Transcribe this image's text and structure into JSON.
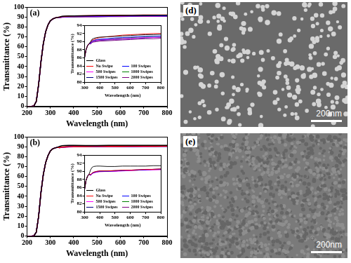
{
  "chart_data": [
    {
      "panel": "(a)",
      "type": "line",
      "x_label": "Wavelength (nm)",
      "y_label": "Transmittance (%)",
      "grid": false,
      "x": [
        200,
        220,
        230,
        240,
        250,
        260,
        270,
        280,
        290,
        300,
        310,
        320,
        330,
        340,
        350,
        360,
        380,
        400,
        450,
        500,
        550,
        600,
        650,
        700,
        750,
        800
      ],
      "xlim": [
        200,
        800
      ],
      "xticks": [
        200,
        300,
        400,
        500,
        600,
        700,
        800
      ],
      "ylim": [
        0,
        100
      ],
      "yticks": [
        0,
        10,
        20,
        30,
        40,
        50,
        60,
        70,
        80,
        90,
        100
      ],
      "series": [
        {
          "name": "Glass",
          "color": "#000000",
          "values": [
            0,
            0,
            0.5,
            5,
            22,
            45,
            63,
            75,
            82,
            86,
            88,
            89,
            89.5,
            90.0,
            90.6,
            90.8,
            91.0,
            91.1,
            91.2,
            91.3,
            91.4,
            91.5,
            91.6,
            91.7,
            91.7,
            91.8
          ]
        },
        {
          "name": "No Swipe",
          "color": "#ff0000",
          "values": [
            0,
            0,
            0.5,
            5,
            22,
            45,
            63,
            75,
            82,
            86,
            88,
            89,
            89.5,
            89.9,
            90.4,
            90.5,
            90.8,
            91.0,
            91.2,
            91.4,
            91.6,
            91.7,
            91.8,
            91.9,
            92.0,
            92.0
          ]
        },
        {
          "name": "100 Swipes",
          "color": "#0000ff",
          "values": [
            0,
            0,
            0.5,
            5,
            22,
            45,
            63,
            75,
            82,
            86,
            88,
            89,
            89.5,
            89.7,
            90.2,
            90.3,
            90.5,
            90.6,
            90.7,
            90.9,
            91.0,
            91.1,
            91.2,
            91.3,
            91.3,
            91.4
          ]
        },
        {
          "name": "500 Swipes",
          "color": "#ff00ff",
          "values": [
            0,
            0,
            0.5,
            5,
            22,
            45,
            63,
            75,
            82,
            86,
            88,
            89,
            89.5,
            89.6,
            90.0,
            90.1,
            90.3,
            90.4,
            90.5,
            90.6,
            90.7,
            90.8,
            90.9,
            91.0,
            91.0,
            91.1
          ]
        },
        {
          "name": "1000 Swipes",
          "color": "#008000",
          "values": [
            0,
            0,
            0.5,
            5,
            22,
            45,
            63,
            75,
            82,
            86,
            88,
            89,
            89.5,
            89.7,
            90.1,
            90.2,
            90.4,
            90.5,
            90.6,
            90.8,
            90.9,
            91.0,
            91.1,
            91.2,
            91.3,
            91.3
          ]
        },
        {
          "name": "1500 Swipes",
          "color": "#000080",
          "values": [
            0,
            0,
            0.5,
            5,
            22,
            45,
            63,
            75,
            82,
            86,
            88,
            89,
            89.5,
            89.5,
            89.9,
            90.0,
            90.2,
            90.3,
            90.4,
            90.5,
            90.6,
            90.7,
            90.8,
            90.9,
            91.0,
            91.0
          ]
        },
        {
          "name": "2000 Swipes",
          "color": "#800080",
          "values": [
            0,
            0,
            0.5,
            5,
            22,
            45,
            63,
            75,
            82,
            86,
            88,
            89,
            89.5,
            89.4,
            89.8,
            89.9,
            90.0,
            90.1,
            90.2,
            90.3,
            90.4,
            90.5,
            90.6,
            90.7,
            90.7,
            90.8
          ]
        }
      ],
      "inset": {
        "x_label": "Wavelength (nm)",
        "y_label": "Transmittance (%)",
        "legend": "lower left",
        "xlim": [
          300,
          800
        ],
        "xticks": [
          300,
          400,
          500,
          600,
          700,
          800
        ],
        "ylim": [
          80,
          94
        ],
        "yticks": [
          80,
          82,
          84,
          86,
          88,
          90,
          92,
          94
        ]
      }
    },
    {
      "panel": "(b)",
      "type": "line",
      "x_label": "Wavelength (nm)",
      "y_label": "Transmittance (%)",
      "grid": false,
      "x": [
        200,
        220,
        230,
        240,
        250,
        260,
        270,
        280,
        290,
        300,
        310,
        320,
        330,
        340,
        350,
        360,
        380,
        400,
        450,
        500,
        550,
        600,
        650,
        700,
        750,
        800
      ],
      "xlim": [
        200,
        800
      ],
      "xticks": [
        200,
        300,
        400,
        500,
        600,
        700,
        800
      ],
      "ylim": [
        0,
        100
      ],
      "yticks": [
        0,
        10,
        20,
        30,
        40,
        50,
        60,
        70,
        80,
        90,
        100
      ],
      "series": [
        {
          "name": "Glass",
          "color": "#000000",
          "values": [
            0,
            0,
            0.3,
            4,
            20,
            44,
            62,
            74,
            81,
            85.5,
            87.8,
            88.8,
            89.3,
            90.4,
            91.0,
            91.2,
            91.3,
            91.3,
            91.2,
            91.2,
            91.3,
            91.3,
            91.3,
            91.3,
            91.4,
            91.4
          ]
        },
        {
          "name": "No Swipe",
          "color": "#ff0000",
          "values": [
            0,
            0,
            0.3,
            4,
            20,
            44,
            62,
            74,
            81,
            85.5,
            87.8,
            88.8,
            89.3,
            89.2,
            89.6,
            89.8,
            90.0,
            90.1,
            90.1,
            90.2,
            90.3,
            90.3,
            90.4,
            90.5,
            90.5,
            90.6
          ]
        },
        {
          "name": "100 Swipes",
          "color": "#0000ff",
          "values": [
            0,
            0,
            0.3,
            4,
            20,
            44,
            62,
            74,
            81,
            85.5,
            87.8,
            88.8,
            89.3,
            89.1,
            89.5,
            89.7,
            89.9,
            90.0,
            90.0,
            90.1,
            90.2,
            90.3,
            90.3,
            90.4,
            90.5,
            90.5
          ]
        },
        {
          "name": "500 Swipes",
          "color": "#ff00ff",
          "values": [
            0,
            0,
            0.3,
            4,
            20,
            44,
            62,
            74,
            81,
            85.5,
            87.8,
            88.8,
            89.3,
            89.0,
            89.4,
            89.6,
            89.8,
            89.9,
            90.0,
            90.0,
            90.1,
            90.2,
            90.3,
            90.3,
            90.4,
            90.4
          ]
        },
        {
          "name": "1000 Swipes",
          "color": "#008000",
          "values": [
            0,
            0,
            0.3,
            4,
            20,
            44,
            62,
            74,
            81,
            85.5,
            87.8,
            88.8,
            89.3,
            89.1,
            89.5,
            89.7,
            89.9,
            90.0,
            90.1,
            90.1,
            90.2,
            90.3,
            90.3,
            90.4,
            90.5,
            90.5
          ]
        },
        {
          "name": "1500 Swipes",
          "color": "#000080",
          "values": [
            0,
            0,
            0.3,
            4,
            20,
            44,
            62,
            74,
            81,
            85.5,
            87.8,
            88.8,
            89.3,
            89.2,
            89.6,
            89.8,
            90.0,
            90.1,
            90.1,
            90.2,
            90.2,
            90.3,
            90.4,
            90.4,
            90.5,
            90.6
          ]
        },
        {
          "name": "2000 Swipes",
          "color": "#800080",
          "values": [
            0,
            0,
            0.3,
            4,
            20,
            44,
            62,
            74,
            81,
            85.5,
            87.8,
            88.8,
            89.3,
            89.0,
            89.5,
            89.7,
            89.9,
            90.0,
            90.0,
            90.1,
            90.2,
            90.2,
            90.3,
            90.4,
            90.4,
            90.5
          ]
        }
      ],
      "inset": {
        "x_label": "Wavelength (nm)",
        "y_label": "Transmittance (%)",
        "legend": "lower left",
        "xlim": [
          300,
          800
        ],
        "xticks": [
          300,
          400,
          500,
          600,
          700,
          800
        ],
        "ylim": [
          80,
          94
        ],
        "yticks": [
          80,
          82,
          84,
          86,
          88,
          90,
          92,
          94
        ]
      }
    }
  ],
  "images": [
    {
      "panel": "(d)",
      "scale_bar": "200nm"
    },
    {
      "panel": "(e)",
      "scale_bar": "200nm"
    }
  ]
}
